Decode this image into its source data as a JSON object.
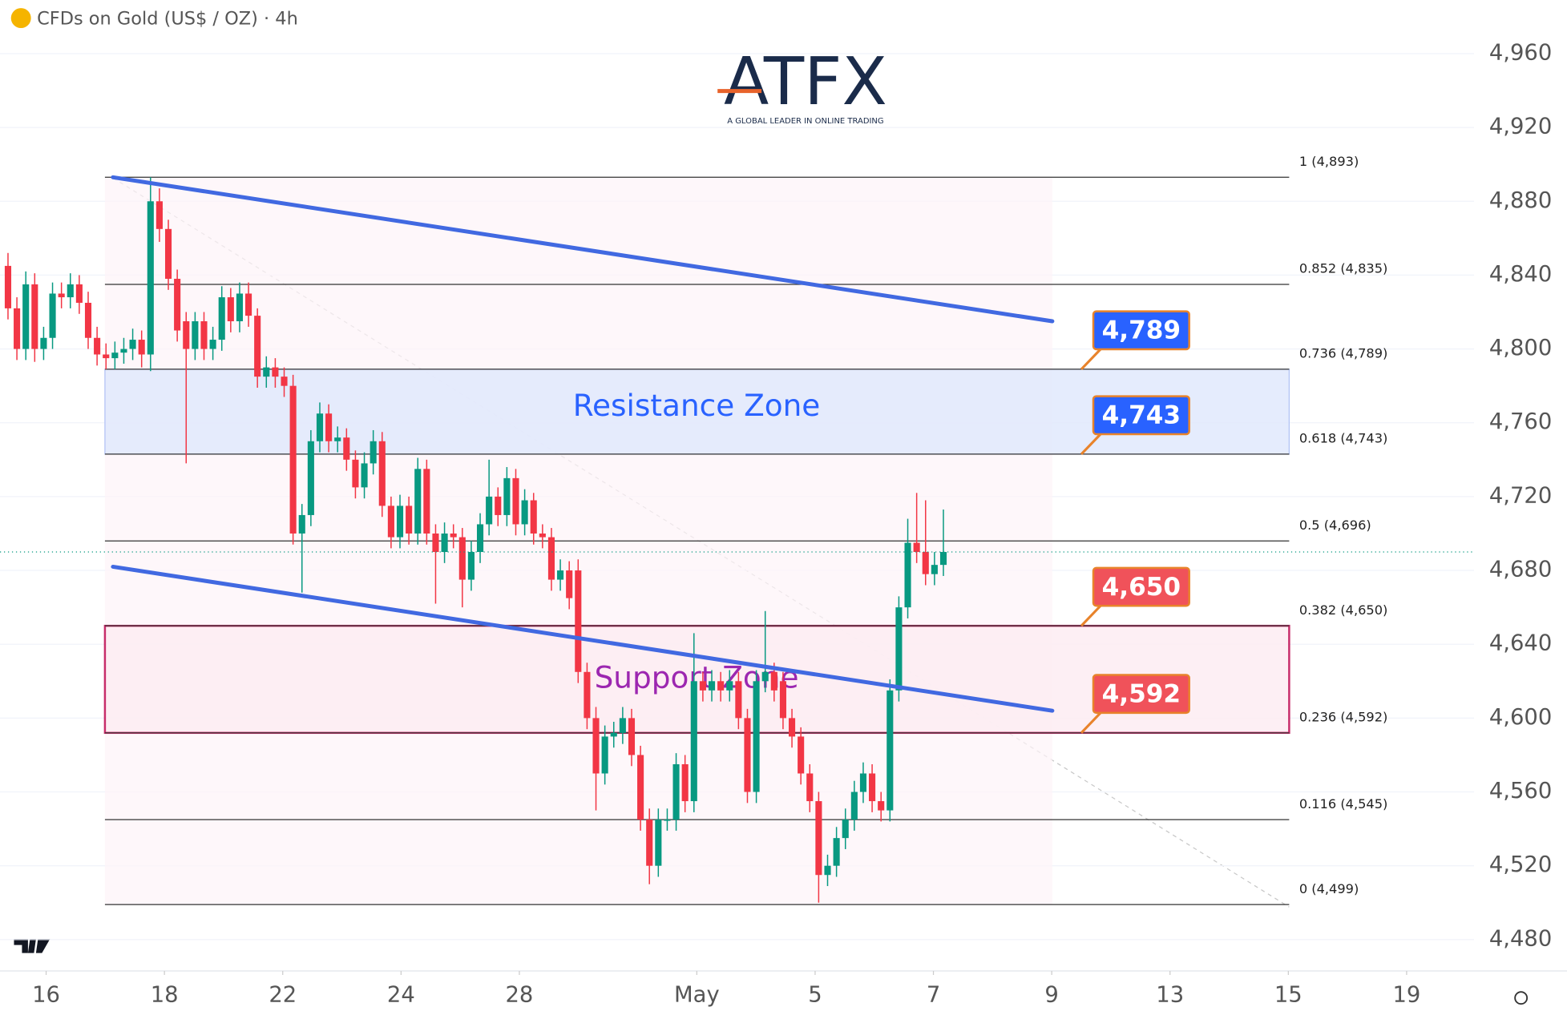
{
  "chart_data": {
    "type": "candlestick",
    "title": "CFDs on Gold (US$ / OZ) · 4h",
    "logo": {
      "name": "ATFX",
      "tagline": "A GLOBAL LEADER IN ONLINE TRADING"
    },
    "colors": {
      "up": "#089981",
      "down": "#f23645"
    },
    "open": [
      4845,
      4822,
      4800,
      4835,
      4800,
      4806,
      4830,
      4828,
      4835,
      4825,
      4806,
      4797,
      4795,
      4798,
      4800,
      4805,
      4797,
      4880,
      4865,
      4838,
      4815,
      4800,
      4815,
      4800,
      4805,
      4828,
      4815,
      4830,
      4818,
      4785,
      4790,
      4785,
      4780,
      4700,
      4710,
      4750,
      4765,
      4750,
      4752,
      4740,
      4725,
      4738,
      4750,
      4715,
      4698,
      4715,
      4700,
      4735,
      4700,
      4690,
      4700,
      4698,
      4675,
      4690,
      4705,
      4720,
      4710,
      4730,
      4705,
      4718,
      4700,
      4698,
      4675,
      4680,
      4680,
      4625,
      4600,
      4570,
      4590,
      4592,
      4600,
      4580,
      4545,
      4520,
      4545,
      4545,
      4575,
      4555,
      4620,
      4615,
      4620,
      4615,
      4620,
      4600,
      4560,
      4620,
      4625,
      4620,
      4600,
      4590,
      4570,
      4555,
      4515,
      4520,
      4535,
      4545,
      4560,
      4570,
      4555,
      4550,
      4615,
      4660,
      4695,
      4690,
      4678,
      4683
    ],
    "high": [
      4852,
      4828,
      4842,
      4841,
      4812,
      4836,
      4836,
      4841,
      4840,
      4831,
      4812,
      4803,
      4804,
      4806,
      4811,
      4810,
      4893,
      4887,
      4870,
      4843,
      4820,
      4820,
      4820,
      4812,
      4834,
      4833,
      4836,
      4836,
      4822,
      4796,
      4795,
      4790,
      4786,
      4716,
      4756,
      4771,
      4770,
      4758,
      4757,
      4745,
      4744,
      4756,
      4755,
      4720,
      4721,
      4720,
      4741,
      4740,
      4705,
      4706,
      4705,
      4703,
      4696,
      4711,
      4740,
      4725,
      4736,
      4735,
      4724,
      4722,
      4705,
      4703,
      4686,
      4685,
      4686,
      4630,
      4606,
      4596,
      4598,
      4606,
      4605,
      4585,
      4551,
      4551,
      4551,
      4581,
      4580,
      4646,
      4625,
      4626,
      4625,
      4626,
      4625,
      4605,
      4626,
      4658,
      4630,
      4625,
      4605,
      4595,
      4575,
      4560,
      4526,
      4541,
      4551,
      4566,
      4576,
      4575,
      4560,
      4621,
      4666,
      4708,
      4722,
      4718,
      4690,
      4713
    ],
    "low": [
      4816,
      4794,
      4794,
      4793,
      4794,
      4800,
      4822,
      4822,
      4819,
      4800,
      4791,
      4789,
      4789,
      4792,
      4794,
      4790,
      4788,
      4858,
      4832,
      4804,
      4738,
      4794,
      4794,
      4794,
      4799,
      4809,
      4809,
      4812,
      4779,
      4779,
      4779,
      4774,
      4694,
      4668,
      4704,
      4744,
      4744,
      4744,
      4734,
      4719,
      4719,
      4732,
      4709,
      4692,
      4692,
      4694,
      4694,
      4694,
      4662,
      4684,
      4692,
      4660,
      4669,
      4684,
      4699,
      4704,
      4704,
      4699,
      4699,
      4694,
      4692,
      4669,
      4669,
      4659,
      4619,
      4594,
      4550,
      4564,
      4584,
      4586,
      4574,
      4539,
      4510,
      4514,
      4539,
      4539,
      4549,
      4549,
      4609,
      4609,
      4609,
      4609,
      4594,
      4554,
      4554,
      4614,
      4609,
      4594,
      4584,
      4564,
      4549,
      4500,
      4509,
      4514,
      4529,
      4539,
      4554,
      4549,
      4544,
      4544,
      4609,
      4654,
      4684,
      4672,
      4672,
      4677
    ],
    "close": [
      4822,
      4800,
      4835,
      4800,
      4806,
      4830,
      4828,
      4835,
      4825,
      4806,
      4797,
      4795,
      4798,
      4800,
      4805,
      4797,
      4880,
      4865,
      4838,
      4810,
      4800,
      4815,
      4800,
      4805,
      4828,
      4815,
      4830,
      4818,
      4785,
      4790,
      4785,
      4780,
      4700,
      4710,
      4750,
      4765,
      4750,
      4752,
      4740,
      4725,
      4738,
      4750,
      4715,
      4698,
      4715,
      4700,
      4735,
      4700,
      4690,
      4700,
      4698,
      4675,
      4690,
      4705,
      4720,
      4710,
      4730,
      4705,
      4718,
      4700,
      4698,
      4675,
      4680,
      4665,
      4625,
      4600,
      4570,
      4590,
      4592,
      4600,
      4580,
      4545,
      4520,
      4545,
      4545,
      4575,
      4555,
      4620,
      4615,
      4620,
      4615,
      4620,
      4600,
      4560,
      4620,
      4625,
      4615,
      4600,
      4590,
      4570,
      4555,
      4515,
      4520,
      4535,
      4545,
      4560,
      4570,
      4555,
      4550,
      4615,
      4660,
      4695,
      4690,
      4678,
      4683,
      4690
    ],
    "ylim": [
      4463,
      4989
    ],
    "yticks": [
      {
        "value": 4480,
        "label": "4,480"
      },
      {
        "value": 4520,
        "label": "4,520"
      },
      {
        "value": 4560,
        "label": "4,560"
      },
      {
        "value": 4600,
        "label": "4,600"
      },
      {
        "value": 4640,
        "label": "4,640"
      },
      {
        "value": 4680,
        "label": "4,680"
      },
      {
        "value": 4720,
        "label": "4,720"
      },
      {
        "value": 4760,
        "label": "4,760"
      },
      {
        "value": 4800,
        "label": "4,800"
      },
      {
        "value": 4840,
        "label": "4,840"
      },
      {
        "value": 4880,
        "label": "4,880"
      },
      {
        "value": 4920,
        "label": "4,920"
      },
      {
        "value": 4960,
        "label": "4,960"
      }
    ],
    "xlim": [
      -0.78,
      24.14
    ],
    "xticks": [
      {
        "value": 0,
        "label": "16"
      },
      {
        "value": 2,
        "label": "18"
      },
      {
        "value": 4,
        "label": "22"
      },
      {
        "value": 6,
        "label": "24"
      },
      {
        "value": 8,
        "label": "28"
      },
      {
        "value": 11,
        "label": "May"
      },
      {
        "value": 13,
        "label": "5"
      },
      {
        "value": 15,
        "label": "7"
      },
      {
        "value": 17,
        "label": "9"
      },
      {
        "value": 19,
        "label": "13"
      },
      {
        "value": 21,
        "label": "15"
      },
      {
        "value": 23,
        "label": "19"
      }
    ],
    "fib_levels": [
      {
        "value": 4893,
        "label": "1 (4,893)"
      },
      {
        "value": 4835,
        "label": "0.852 (4,835)"
      },
      {
        "value": 4789,
        "label": "0.736 (4,789)"
      },
      {
        "value": 4743,
        "label": "0.618 (4,743)"
      },
      {
        "value": 4696,
        "label": "0.5 (4,696)"
      },
      {
        "value": 4650,
        "label": "0.382 (4,650)"
      },
      {
        "value": 4592,
        "label": "0.236 (4,592)"
      },
      {
        "value": 4545,
        "label": "0.116 (4,545)"
      },
      {
        "value": 4499,
        "label": "0 (4,499)"
      }
    ],
    "zones": [
      {
        "name": "Resistance Zone",
        "low": 4743,
        "high": 4789,
        "color": "#2962ff"
      },
      {
        "name": "Support Zone",
        "low": 4592,
        "high": 4650,
        "color": "#9c27b0"
      }
    ],
    "price_tags": [
      {
        "value": 4789,
        "label": "4,789",
        "color": "#2962ff"
      },
      {
        "value": 4743,
        "label": "4,743",
        "color": "#2962ff"
      },
      {
        "value": 4650,
        "label": "4,650",
        "color": "#f0525a"
      },
      {
        "value": 4592,
        "label": "4,592",
        "color": "#f0525a"
      }
    ],
    "trendlines": [
      {
        "start": 4893,
        "end": 4815
      },
      {
        "start": 4682,
        "end": 4604
      }
    ]
  }
}
